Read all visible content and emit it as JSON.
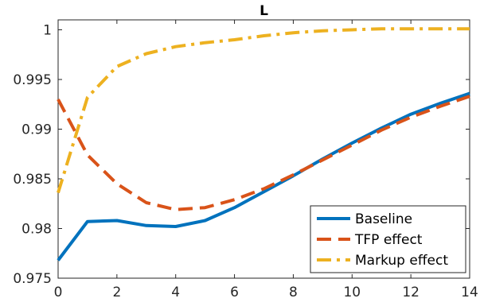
{
  "chart_data": {
    "type": "line",
    "title": "L",
    "xlabel": "",
    "ylabel": "",
    "xlim": [
      0,
      14
    ],
    "ylim": [
      0.975,
      1.001
    ],
    "xticks": [
      0,
      2,
      4,
      6,
      8,
      10,
      12,
      14
    ],
    "xtick_labels": [
      "0",
      "2",
      "4",
      "6",
      "8",
      "10",
      "12",
      "14"
    ],
    "yticks": [
      0.975,
      0.98,
      0.985,
      0.99,
      0.995,
      1.0
    ],
    "ytick_labels": [
      "0.975",
      "0.98",
      "0.985",
      "0.99",
      "0.995",
      "1"
    ],
    "grid": false,
    "legend_position": "bottom-right",
    "x": [
      0,
      1,
      2,
      3,
      4,
      5,
      6,
      7,
      8,
      9,
      10,
      11,
      12,
      13,
      14
    ],
    "series": [
      {
        "name": "Baseline",
        "color": "#0072BD",
        "style": "solid",
        "values": [
          0.9768,
          0.9807,
          0.9808,
          0.9803,
          0.9802,
          0.9808,
          0.9821,
          0.9837,
          0.9853,
          0.987,
          0.9886,
          0.9901,
          0.9915,
          0.9926,
          0.9936
        ]
      },
      {
        "name": "TFP effect",
        "color": "#D95319",
        "style": "dashed",
        "values": [
          0.993,
          0.9874,
          0.9845,
          0.9826,
          0.9819,
          0.9821,
          0.9829,
          0.984,
          0.9854,
          0.9869,
          0.9884,
          0.9899,
          0.9912,
          0.9923,
          0.9933
        ]
      },
      {
        "name": "Markup effect",
        "color": "#EDB120",
        "style": "dashdot",
        "values": [
          0.9836,
          0.9932,
          0.9963,
          0.9976,
          0.9983,
          0.9987,
          0.999,
          0.9994,
          0.9997,
          0.9999,
          1.0,
          1.0001,
          1.0001,
          1.0001,
          1.0001
        ]
      }
    ]
  }
}
